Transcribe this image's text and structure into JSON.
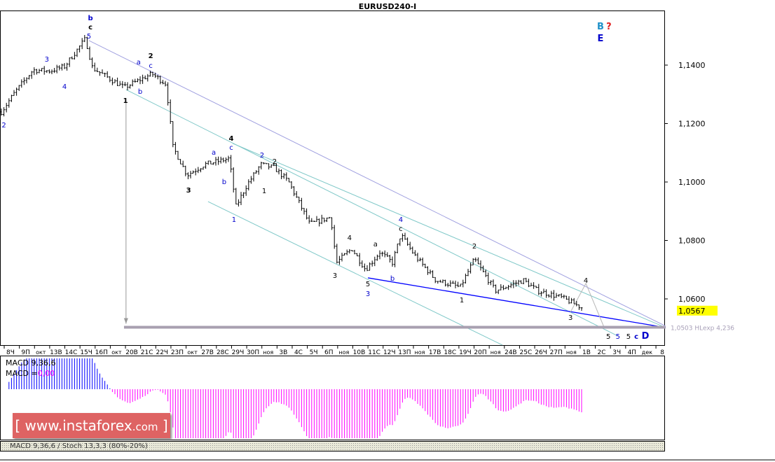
{
  "title": "EURUSD240-I",
  "watermark": {
    "prefix": "[ ",
    "main": "www.instaforex",
    "domain": ".com",
    "suffix": " ]"
  },
  "indicators": {
    "macd_params": "MACD 9,36,6",
    "macd_label": "MACD =",
    "macd_value": "0,00",
    "tab_macd": "MACD 9,36,6",
    "tab_stoch": "Stoch 13,3,3 (80%-20%)"
  },
  "colors": {
    "bars": "#000000",
    "hist_pos": "#0000ff",
    "hist_neg": "#ff00ff",
    "current_price_bg": "#ffff00",
    "channel": "#7fc8c8",
    "outer_line": "#a0a0e0",
    "support": "#0000ff",
    "target_line": "#a8a0b0"
  },
  "chart_data": {
    "type": "ohlc",
    "symbol": "EURUSD240-I",
    "ylim": [
      1.044,
      1.158
    ],
    "y_ticks": [
      "1,1400",
      "1,1200",
      "1,1000",
      "1,0800",
      "1,0600"
    ],
    "y_tick_values": [
      1.14,
      1.12,
      1.1,
      1.08,
      1.06
    ],
    "current_price": "1,0567",
    "current_price_value": 1.0567,
    "x_ticks": [
      "8Ч",
      "9П",
      "окт",
      "13В",
      "14С",
      "15Ч",
      "16П",
      "окт",
      "20В",
      "21С",
      "22Ч",
      "23П",
      "окт",
      "27В",
      "28С",
      "29Ч",
      "30П",
      "ноя",
      "3В",
      "4С",
      "5Ч",
      "6П",
      "ноя",
      "10В",
      "11С",
      "12Ч",
      "13П",
      "ноя",
      "17В",
      "18С",
      "19Ч",
      "20П",
      "ноя",
      "24В",
      "25С",
      "26Ч",
      "27П",
      "ноя",
      "1В",
      "2С",
      "3Ч",
      "4П",
      "дек",
      "8"
    ],
    "price_path_bar_close": [
      [
        0,
        1.124
      ],
      [
        5.6,
        1.131
      ],
      [
        12.5,
        1.1383
      ],
      [
        19.4,
        1.138
      ],
      [
        25,
        1.1395
      ],
      [
        33.3,
        1.149
      ],
      [
        36.1,
        1.139
      ],
      [
        48.6,
        1.1323
      ],
      [
        59.7,
        1.137
      ],
      [
        65.3,
        1.1335
      ],
      [
        68,
        1.112
      ],
      [
        73.6,
        1.1024
      ],
      [
        80.6,
        1.106
      ],
      [
        90.3,
        1.108
      ],
      [
        93,
        1.0916
      ],
      [
        97.2,
        1.0988
      ],
      [
        102.8,
        1.106
      ],
      [
        108.3,
        1.1048
      ],
      [
        113.9,
        1.1
      ],
      [
        122.2,
        1.0856
      ],
      [
        130.6,
        1.088
      ],
      [
        132.8,
        1.0724
      ],
      [
        138.9,
        1.0772
      ],
      [
        144.4,
        1.07
      ],
      [
        150,
        1.076
      ],
      [
        155,
        1.0724
      ],
      [
        158.3,
        1.082
      ],
      [
        163.9,
        1.0748
      ],
      [
        172.2,
        1.0664
      ],
      [
        181.9,
        1.064
      ],
      [
        187.5,
        1.0736
      ],
      [
        195.8,
        1.0628
      ],
      [
        206.9,
        1.0664
      ],
      [
        212.5,
        1.0628
      ],
      [
        222.2,
        1.0604
      ],
      [
        230.6,
        1.0568
      ]
    ],
    "target_level": {
      "price": 1.0503,
      "label": "1,0503 HLexp 4,236",
      "from_bar": 48.6,
      "to_bar": 263.3
    },
    "arrow": {
      "bar": 49.4,
      "from": 1.1272,
      "to": 1.0515
    },
    "lines": [
      {
        "kind": "outer",
        "points": [
          [
            34.7,
            1.1484
          ],
          [
            263.3,
            1.0507
          ]
        ]
      },
      {
        "kind": "channel",
        "points": [
          [
            91.7,
            1.1132
          ],
          [
            263.3,
            1.0502
          ]
        ]
      },
      {
        "kind": "channel",
        "points": [
          [
            49.4,
            1.1316
          ],
          [
            244.4,
            1.0473
          ]
        ]
      },
      {
        "kind": "channel",
        "points": [
          [
            81.9,
            1.0933
          ],
          [
            198.6,
            1.0442
          ]
        ]
      },
      {
        "kind": "support",
        "points": [
          [
            145.3,
            1.0672
          ],
          [
            263.3,
            1.0502
          ]
        ]
      },
      {
        "kind": "projection",
        "points": [
          [
            225.6,
            1.0555
          ],
          [
            231.7,
            1.0653
          ],
          [
            238.9,
            1.0503
          ]
        ]
      }
    ],
    "wave_labels": [
      {
        "t": "b",
        "c": "#0000cc",
        "b": 35.3,
        "p": 1.1563,
        "bold": true
      },
      {
        "t": "c",
        "c": "#000000",
        "b": 35.3,
        "p": 1.1539,
        "bold": true
      },
      {
        "t": "5",
        "c": "#0000cc",
        "b": 34.7,
        "p": 1.1513
      },
      {
        "t": "3",
        "c": "#0000cc",
        "b": 18,
        "p": 1.1422
      },
      {
        "t": "4",
        "c": "#0000cc",
        "b": 25,
        "p": 1.1328
      },
      {
        "t": "2",
        "c": "#0000cc",
        "b": 1,
        "p": 1.1196
      },
      {
        "t": "2",
        "c": "#000000",
        "b": 59.2,
        "p": 1.1434,
        "bold": true
      },
      {
        "t": "a",
        "c": "#0000cc",
        "b": 54.4,
        "p": 1.1412
      },
      {
        "t": "c",
        "c": "#0000cc",
        "b": 59.2,
        "p": 1.14
      },
      {
        "t": "b",
        "c": "#0000cc",
        "b": 55,
        "p": 1.1311
      },
      {
        "t": "1",
        "c": "#000000",
        "b": 49.2,
        "p": 1.128,
        "bold": true
      },
      {
        "t": "4",
        "c": "#000000",
        "b": 91.1,
        "p": 1.1151,
        "bold": true
      },
      {
        "t": "c",
        "c": "#0000cc",
        "b": 91.1,
        "p": 1.112
      },
      {
        "t": "a",
        "c": "#0000cc",
        "b": 84.2,
        "p": 1.1103
      },
      {
        "t": "b",
        "c": "#0000cc",
        "b": 88.3,
        "p": 1.1002
      },
      {
        "t": "3",
        "c": "#000000",
        "b": 74.2,
        "p": 1.0974,
        "bold": true
      },
      {
        "t": "2",
        "c": "#0000cc",
        "b": 103.3,
        "p": 1.1093
      },
      {
        "t": "2",
        "c": "#000000",
        "b": 108.3,
        "p": 1.1072
      },
      {
        "t": "1",
        "c": "#000000",
        "b": 104.2,
        "p": 1.0971
      },
      {
        "t": "1",
        "c": "#0000cc",
        "b": 92.2,
        "p": 1.0873
      },
      {
        "t": "4",
        "c": "#0000cc",
        "b": 158.3,
        "p": 1.0873
      },
      {
        "t": "c",
        "c": "#000000",
        "b": 158.3,
        "p": 1.0849
      },
      {
        "t": "4",
        "c": "#000000",
        "b": 138,
        "p": 1.0811
      },
      {
        "t": "a",
        "c": "#000000",
        "b": 148.3,
        "p": 1.0789
      },
      {
        "t": "3",
        "c": "#000000",
        "b": 132.2,
        "p": 1.0681
      },
      {
        "t": "5",
        "c": "#000000",
        "b": 145.3,
        "p": 1.0653
      },
      {
        "t": "3",
        "c": "#0000cc",
        "b": 145.3,
        "p": 1.0619
      },
      {
        "t": "b",
        "c": "#0000cc",
        "b": 155,
        "p": 1.0672
      },
      {
        "t": "2",
        "c": "#000000",
        "b": 187.5,
        "p": 1.0782
      },
      {
        "t": "1",
        "c": "#000000",
        "b": 182.5,
        "p": 1.0598
      },
      {
        "t": "4",
        "c": "#000000",
        "b": 231.7,
        "p": 1.0665
      },
      {
        "t": "3",
        "c": "#000000",
        "b": 225.6,
        "p": 1.0538
      },
      {
        "t": "5",
        "c": "#000000",
        "b": 240.6,
        "p": 1.0473
      },
      {
        "t": "5",
        "c": "#0000cc",
        "b": 244.4,
        "p": 1.0473
      },
      {
        "t": "5",
        "c": "#000000",
        "b": 248.6,
        "p": 1.0473
      },
      {
        "t": "c",
        "c": "#0000cc",
        "b": 251.7,
        "p": 1.0473,
        "bold": true
      },
      {
        "t": "D",
        "c": "#0000cc",
        "b": 255.3,
        "p": 1.0473,
        "bold": true,
        "big": true
      },
      {
        "t": "B",
        "c": "#1e90c8",
        "b": 237.5,
        "p": 1.1532,
        "bold": true,
        "big": true
      },
      {
        "t": "?",
        "c": "#e02020",
        "b": 240.8,
        "p": 1.1532,
        "bold": true,
        "big": true
      },
      {
        "t": "E",
        "c": "#0000cc",
        "b": 237.5,
        "p": 1.1491,
        "bold": true,
        "big": true
      }
    ]
  }
}
